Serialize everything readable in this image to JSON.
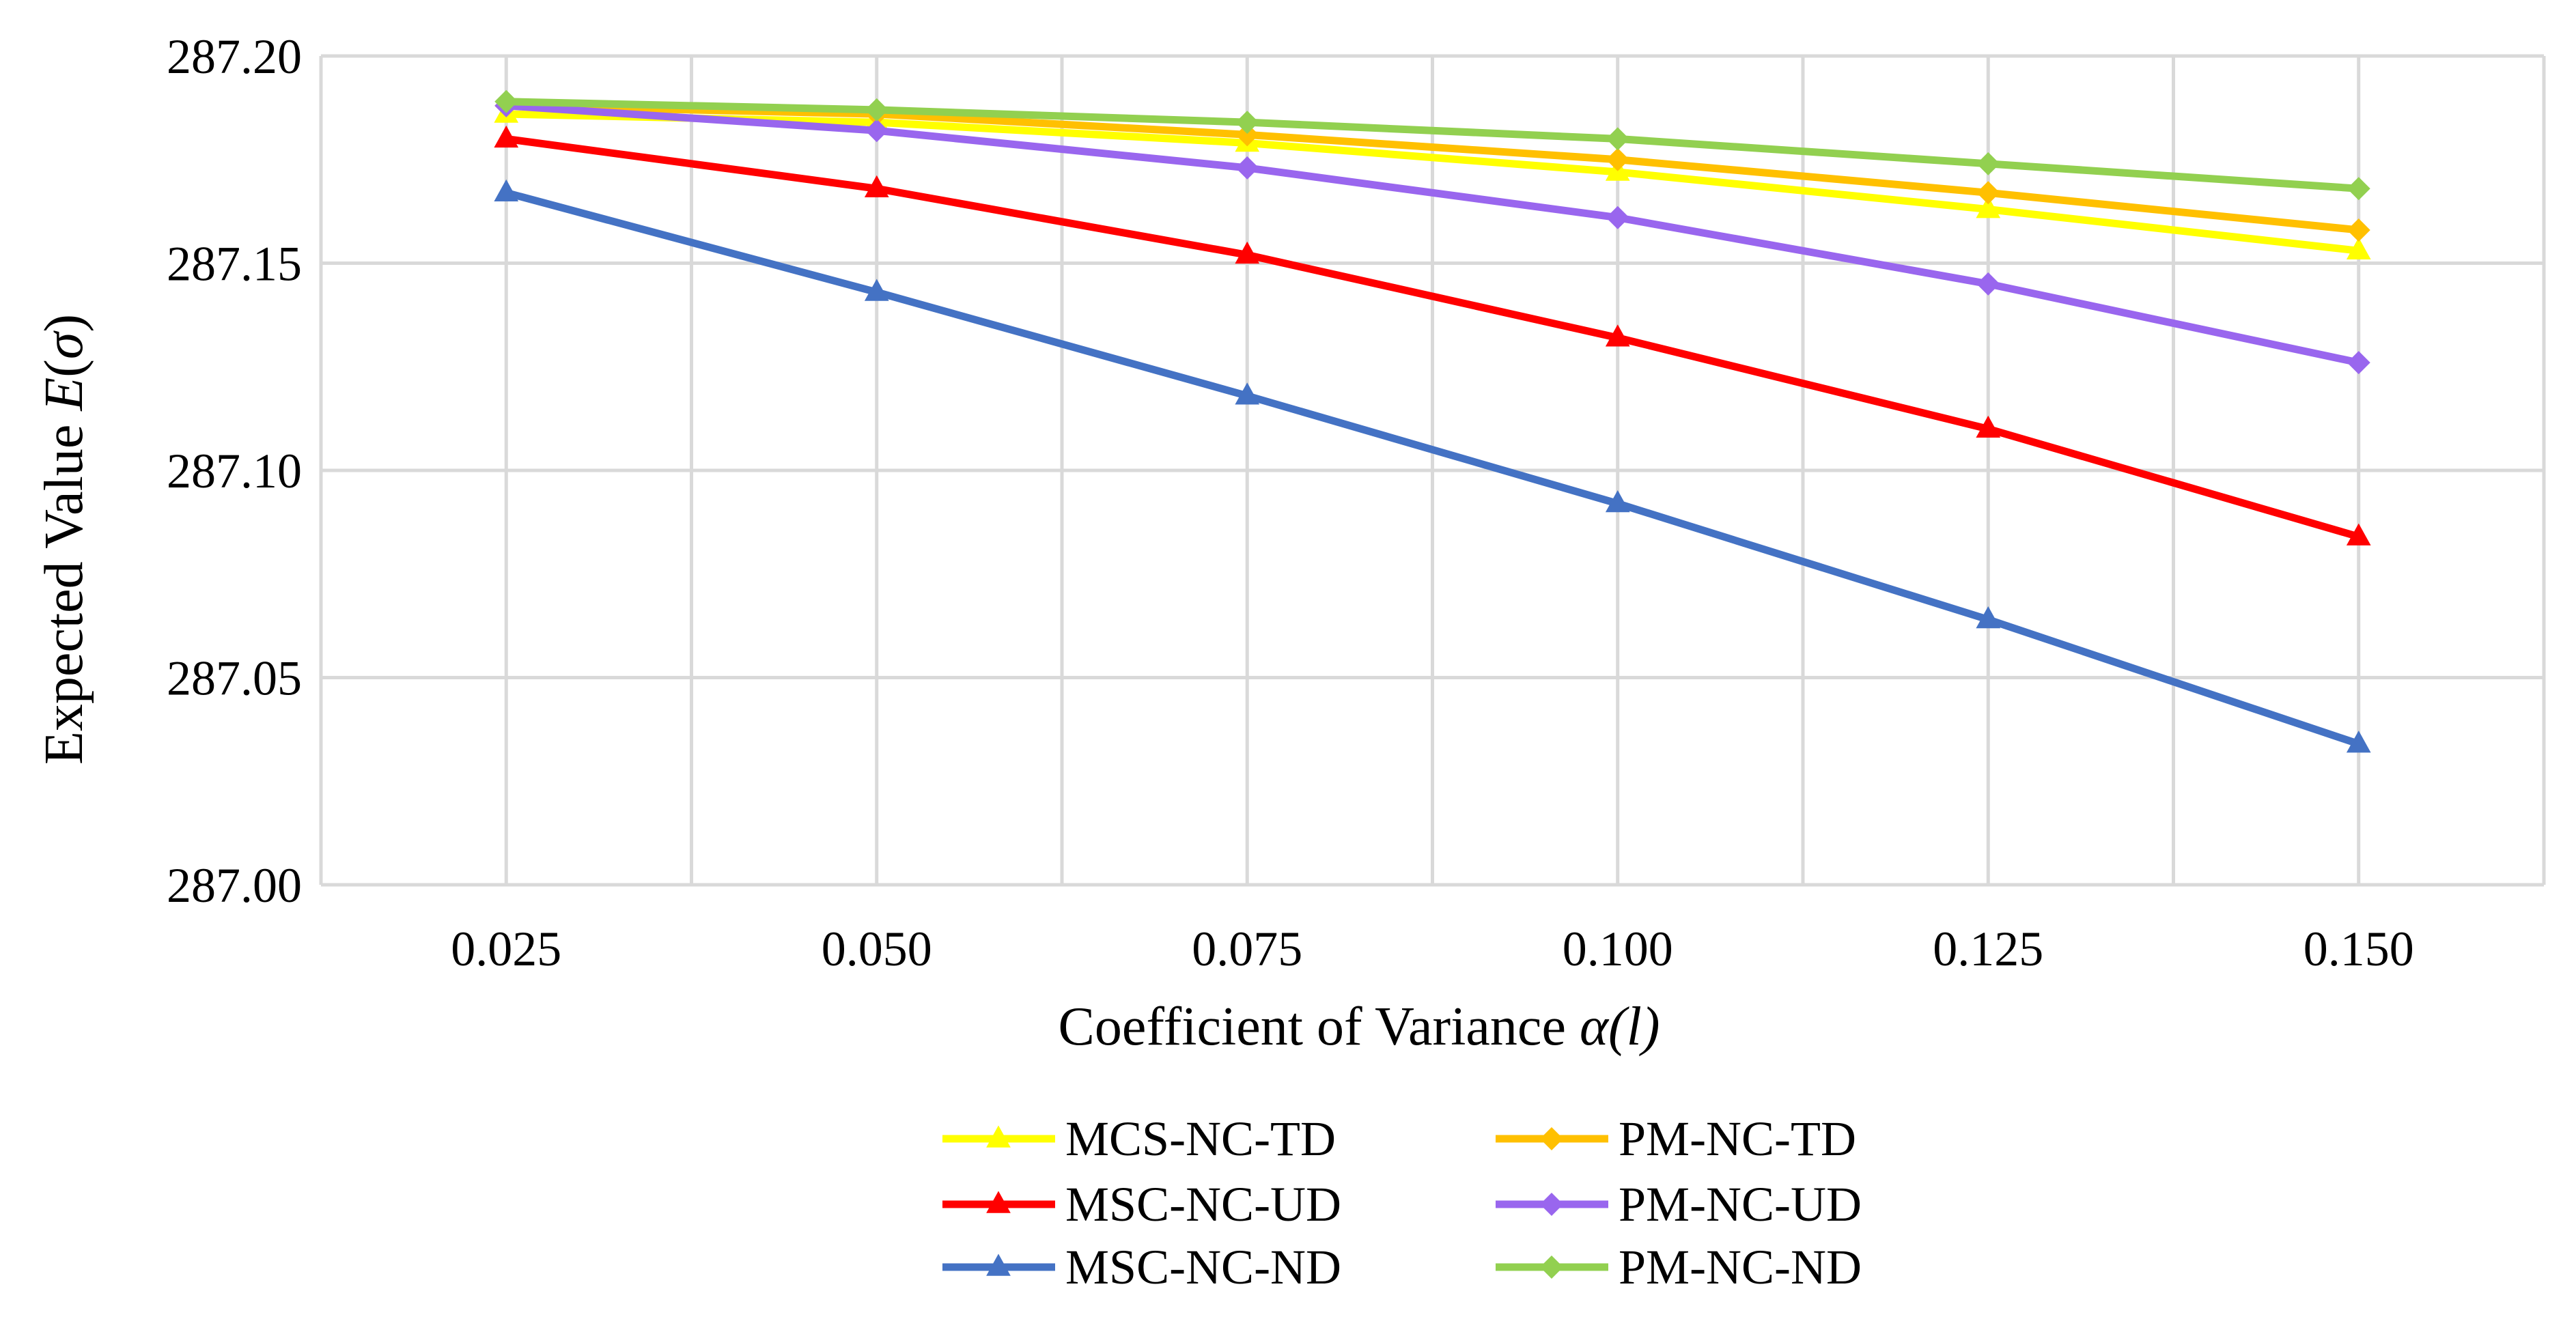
{
  "chart_data": {
    "type": "line",
    "title": "",
    "xlabel": {
      "text": "Coefficient of Variance ",
      "italic": "α(l)"
    },
    "ylabel": {
      "text": "Expected Value ",
      "italic_E": "E",
      "paren_open": "(",
      "sigma": "σ",
      "paren_close": ")"
    },
    "x": [
      0.025,
      0.05,
      0.075,
      0.1,
      0.125,
      0.15
    ],
    "x_tick_labels": [
      "0.025",
      "0.050",
      "0.075",
      "0.100",
      "0.125",
      "0.150"
    ],
    "y_tick_values": [
      287.0,
      287.05,
      287.1,
      287.15,
      287.2
    ],
    "y_tick_labels": [
      "287.00",
      "287.05",
      "287.10",
      "287.15",
      "287.20"
    ],
    "xlim": [
      0.0125,
      0.1625
    ],
    "ylim": [
      287.0,
      287.2
    ],
    "grid": true,
    "legend_position": "bottom",
    "series": [
      {
        "name": "MCS-NC-TD",
        "color": "#FFFF00",
        "marker": "triangle",
        "values": [
          287.186,
          287.184,
          287.179,
          287.172,
          287.163,
          287.153
        ]
      },
      {
        "name": "PM-NC-TD",
        "color": "#FFC000",
        "marker": "diamond",
        "values": [
          287.188,
          287.186,
          287.181,
          287.175,
          287.167,
          287.158
        ]
      },
      {
        "name": "MSC-NC-UD",
        "color": "#FF0000",
        "marker": "triangle",
        "values": [
          287.18,
          287.168,
          287.152,
          287.132,
          287.11,
          287.084
        ]
      },
      {
        "name": "PM-NC-UD",
        "color": "#9966EE",
        "marker": "diamond",
        "values": [
          287.188,
          287.182,
          287.173,
          287.161,
          287.145,
          287.126
        ]
      },
      {
        "name": "MSC-NC-ND",
        "color": "#4472C4",
        "marker": "triangle",
        "values": [
          287.167,
          287.143,
          287.118,
          287.092,
          287.064,
          287.034
        ]
      },
      {
        "name": "PM-NC-ND",
        "color": "#92D050",
        "marker": "diamond",
        "values": [
          287.189,
          287.187,
          287.184,
          287.18,
          287.174,
          287.168
        ]
      }
    ],
    "legend_order": [
      0,
      1,
      2,
      3,
      4,
      5
    ]
  }
}
